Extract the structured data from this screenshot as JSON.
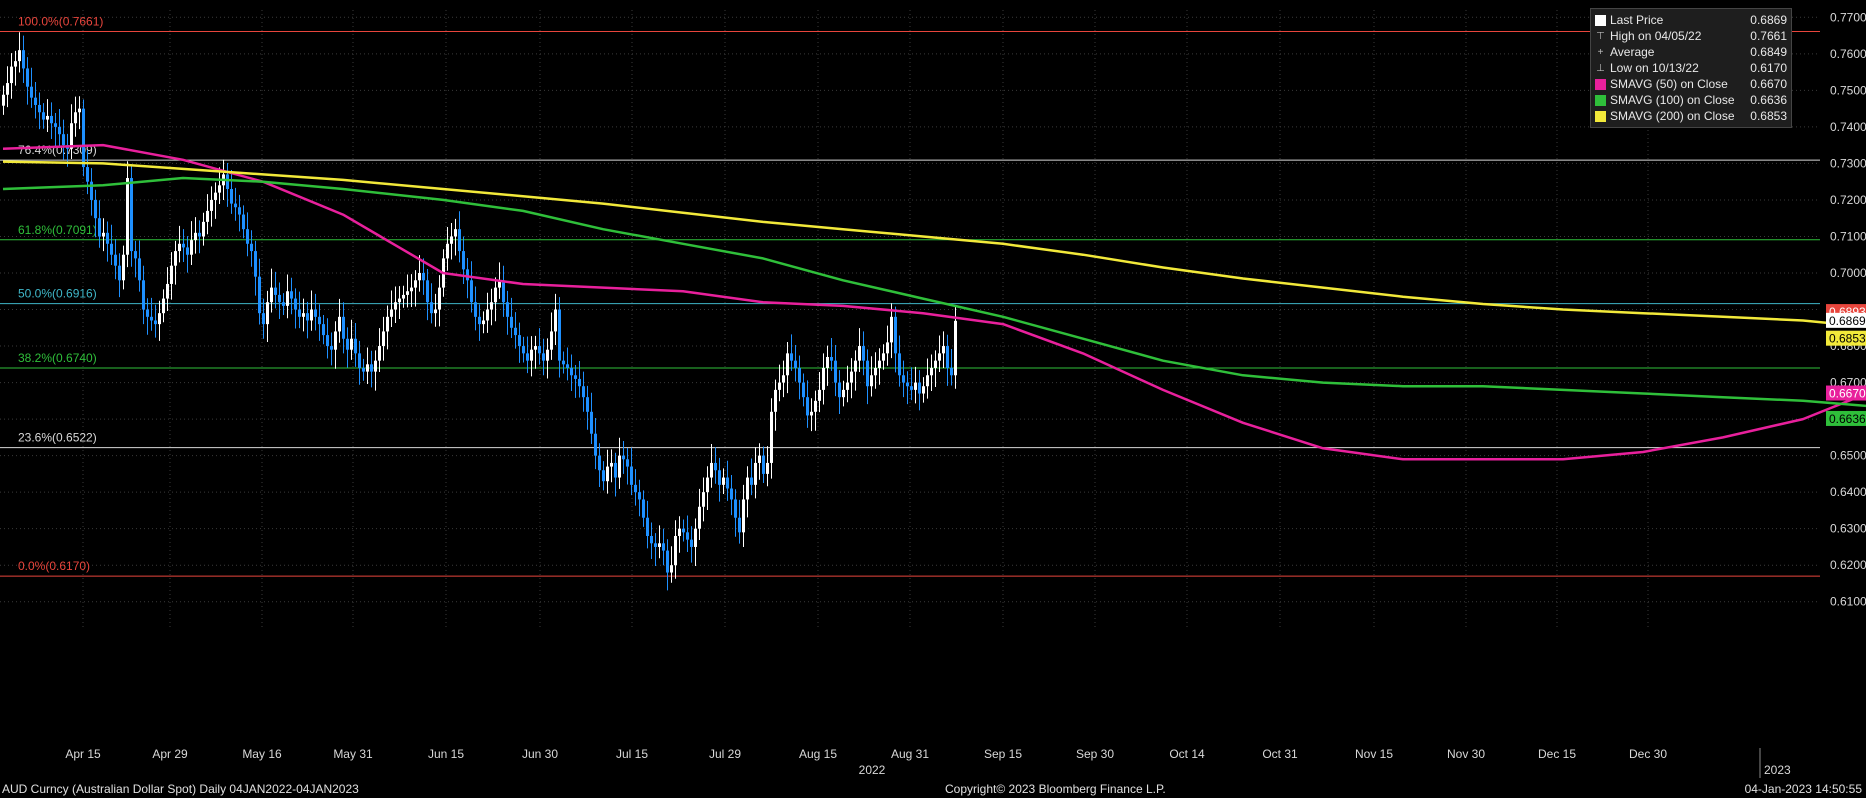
{
  "chart_data": {
    "type": "candlestick",
    "ylim": [
      0.605,
      0.772
    ],
    "y_ticks": [
      "0.6100",
      "0.6200",
      "0.6300",
      "0.6400",
      "0.6500",
      "0.6600",
      "0.6700",
      "0.6800",
      "0.6900",
      "0.7000",
      "0.7100",
      "0.7200",
      "0.7300",
      "0.7400",
      "0.7500",
      "0.7600",
      "0.7700"
    ],
    "x_ticks": [
      "Apr 15",
      "Apr 29",
      "May 16",
      "May 31",
      "Jun 15",
      "Jun 30",
      "Jul 15",
      "Jul 29",
      "Aug 15",
      "Aug 31",
      "Sep 15",
      "Sep 30",
      "Oct 14",
      "Oct 31",
      "Nov 15",
      "Nov 30",
      "Dec 15",
      "Dec 30"
    ],
    "year_labels": [
      "2022",
      "2023"
    ],
    "fib_levels": [
      {
        "label": "100.0%(0.7661)",
        "value": 0.7661,
        "color": "#e8453c"
      },
      {
        "label": "76.4%(0.7309)",
        "value": 0.7309,
        "color": "#d8d8d8"
      },
      {
        "label": "61.8%(0.7091)",
        "value": 0.7091,
        "color": "#2fbf3a"
      },
      {
        "label": "50.0%(0.6916)",
        "value": 0.6916,
        "color": "#3fb6c8"
      },
      {
        "label": "38.2%(0.6740)",
        "value": 0.674,
        "color": "#2fbf3a"
      },
      {
        "label": "23.6%(0.6522)",
        "value": 0.6522,
        "color": "#d8d8d8"
      },
      {
        "label": "0.0%(0.6170)",
        "value": 0.617,
        "color": "#e8453c"
      }
    ],
    "closes": [
      0.7488,
      0.752,
      0.7565,
      0.758,
      0.761,
      0.756,
      0.751,
      0.748,
      0.746,
      0.744,
      0.742,
      0.743,
      0.741,
      0.74,
      0.738,
      0.735,
      0.734,
      0.741,
      0.744,
      0.745,
      0.729,
      0.725,
      0.72,
      0.715,
      0.71,
      0.711,
      0.708,
      0.705,
      0.702,
      0.698,
      0.705,
      0.726,
      0.706,
      0.704,
      0.698,
      0.69,
      0.688,
      0.687,
      0.686,
      0.689,
      0.693,
      0.697,
      0.702,
      0.706,
      0.708,
      0.707,
      0.705,
      0.709,
      0.711,
      0.71,
      0.714,
      0.717,
      0.72,
      0.722,
      0.724,
      0.727,
      0.723,
      0.719,
      0.718,
      0.716,
      0.712,
      0.708,
      0.706,
      0.699,
      0.689,
      0.686,
      0.692,
      0.696,
      0.694,
      0.692,
      0.691,
      0.695,
      0.693,
      0.69,
      0.688,
      0.689,
      0.687,
      0.69,
      0.688,
      0.686,
      0.683,
      0.68,
      0.679,
      0.684,
      0.688,
      0.682,
      0.679,
      0.682,
      0.678,
      0.674,
      0.673,
      0.675,
      0.673,
      0.676,
      0.68,
      0.684,
      0.688,
      0.69,
      0.692,
      0.693,
      0.694,
      0.695,
      0.696,
      0.698,
      0.7,
      0.698,
      0.692,
      0.689,
      0.69,
      0.696,
      0.704,
      0.708,
      0.71,
      0.712,
      0.706,
      0.701,
      0.698,
      0.692,
      0.688,
      0.686,
      0.687,
      0.69,
      0.692,
      0.696,
      0.698,
      0.692,
      0.688,
      0.685,
      0.683,
      0.68,
      0.678,
      0.676,
      0.679,
      0.68,
      0.678,
      0.676,
      0.679,
      0.684,
      0.69,
      0.676,
      0.675,
      0.674,
      0.672,
      0.671,
      0.669,
      0.666,
      0.662,
      0.656,
      0.65,
      0.646,
      0.643,
      0.647,
      0.648,
      0.644,
      0.65,
      0.649,
      0.647,
      0.642,
      0.64,
      0.638,
      0.633,
      0.628,
      0.626,
      0.625,
      0.626,
      0.624,
      0.618,
      0.62,
      0.628,
      0.63,
      0.629,
      0.627,
      0.625,
      0.63,
      0.636,
      0.64,
      0.644,
      0.648,
      0.646,
      0.642,
      0.644,
      0.641,
      0.638,
      0.633,
      0.629,
      0.638,
      0.644,
      0.642,
      0.648,
      0.65,
      0.645,
      0.648,
      0.662,
      0.668,
      0.67,
      0.672,
      0.678,
      0.676,
      0.674,
      0.67,
      0.666,
      0.661,
      0.662,
      0.665,
      0.668,
      0.674,
      0.677,
      0.676,
      0.67,
      0.666,
      0.668,
      0.67,
      0.673,
      0.676,
      0.68,
      0.676,
      0.669,
      0.672,
      0.674,
      0.676,
      0.678,
      0.681,
      0.688,
      0.678,
      0.672,
      0.67,
      0.669,
      0.668,
      0.67,
      0.667,
      0.669,
      0.672,
      0.674,
      0.676,
      0.678,
      0.68,
      0.674,
      0.672,
      0.6869
    ]
  },
  "sma_lines": [
    {
      "name": "SMAVG (50)",
      "color": "#e8209c",
      "points": [
        [
          0,
          0.734
        ],
        [
          25,
          0.735
        ],
        [
          45,
          0.731
        ],
        [
          65,
          0.725
        ],
        [
          85,
          0.716
        ],
        [
          110,
          0.7
        ],
        [
          130,
          0.697
        ],
        [
          150,
          0.696
        ],
        [
          170,
          0.695
        ],
        [
          190,
          0.692
        ],
        [
          210,
          0.691
        ],
        [
          230,
          0.689
        ],
        [
          250,
          0.686
        ],
        [
          270,
          0.678
        ],
        [
          290,
          0.668
        ],
        [
          310,
          0.659
        ],
        [
          330,
          0.652
        ],
        [
          350,
          0.649
        ],
        [
          370,
          0.649
        ],
        [
          390,
          0.649
        ],
        [
          410,
          0.651
        ],
        [
          430,
          0.655
        ],
        [
          450,
          0.66
        ],
        [
          466,
          0.667
        ]
      ]
    },
    {
      "name": "SMAVG (100)",
      "color": "#2fbf3a",
      "points": [
        [
          0,
          0.723
        ],
        [
          25,
          0.724
        ],
        [
          45,
          0.726
        ],
        [
          65,
          0.725
        ],
        [
          85,
          0.723
        ],
        [
          110,
          0.72
        ],
        [
          130,
          0.717
        ],
        [
          150,
          0.712
        ],
        [
          170,
          0.708
        ],
        [
          190,
          0.704
        ],
        [
          210,
          0.698
        ],
        [
          230,
          0.693
        ],
        [
          250,
          0.688
        ],
        [
          270,
          0.682
        ],
        [
          290,
          0.676
        ],
        [
          310,
          0.672
        ],
        [
          330,
          0.67
        ],
        [
          350,
          0.669
        ],
        [
          370,
          0.669
        ],
        [
          390,
          0.668
        ],
        [
          410,
          0.667
        ],
        [
          430,
          0.666
        ],
        [
          450,
          0.665
        ],
        [
          466,
          0.6636
        ]
      ]
    },
    {
      "name": "SMAVG (200)",
      "color": "#f2e93a",
      "points": [
        [
          0,
          0.7305
        ],
        [
          25,
          0.73
        ],
        [
          45,
          0.7285
        ],
        [
          65,
          0.727
        ],
        [
          85,
          0.7255
        ],
        [
          110,
          0.723
        ],
        [
          130,
          0.721
        ],
        [
          150,
          0.719
        ],
        [
          170,
          0.7165
        ],
        [
          190,
          0.714
        ],
        [
          210,
          0.712
        ],
        [
          230,
          0.71
        ],
        [
          250,
          0.708
        ],
        [
          270,
          0.705
        ],
        [
          290,
          0.7015
        ],
        [
          310,
          0.6985
        ],
        [
          330,
          0.696
        ],
        [
          350,
          0.6935
        ],
        [
          370,
          0.6915
        ],
        [
          390,
          0.69
        ],
        [
          410,
          0.689
        ],
        [
          430,
          0.688
        ],
        [
          450,
          0.687
        ],
        [
          466,
          0.6853
        ]
      ]
    }
  ],
  "right_badges": [
    {
      "label": "0.6893",
      "value": 0.6893,
      "bg": "#e8453c",
      "fg": "#ffffff"
    },
    {
      "label": "0.6869",
      "value": 0.6869,
      "bg": "#ffffff",
      "fg": "#000000"
    },
    {
      "label": "0.6853",
      "value": 0.6853,
      "bg": "#f2e93a",
      "fg": "#000000"
    },
    {
      "label": "0.6670",
      "value": 0.667,
      "bg": "#e8209c",
      "fg": "#ffffff"
    },
    {
      "label": "0.6636",
      "value": 0.6636,
      "bg": "#2fbf3a",
      "fg": "#000000"
    }
  ],
  "legend": {
    "rows": [
      {
        "icon": "white-square",
        "label": "Last Price",
        "value": "0.6869",
        "color": "#ffffff"
      },
      {
        "icon": "high-marker",
        "label": "High on 04/05/22",
        "value": "0.7661",
        "color": ""
      },
      {
        "icon": "average-marker",
        "label": "Average",
        "value": "0.6849",
        "color": ""
      },
      {
        "icon": "low-marker",
        "label": "Low on 10/13/22",
        "value": "0.6170",
        "color": ""
      },
      {
        "icon": "magenta-square",
        "label": "SMAVG (50)  on Close",
        "value": "0.6670",
        "color": "#e8209c"
      },
      {
        "icon": "green-square",
        "label": "SMAVG (100)  on Close",
        "value": "0.6636",
        "color": "#2fbf3a"
      },
      {
        "icon": "yellow-square",
        "label": "SMAVG (200)  on Close",
        "value": "0.6853",
        "color": "#f2e93a"
      }
    ]
  },
  "footer": {
    "left": "AUD Curncy (Australian Dollar Spot)  Daily 04JAN2022-04JAN2023",
    "center": "Copyright© 2023 Bloomberg Finance L.P.",
    "right": "04-Jan-2023 14:50:55"
  },
  "colors": {
    "up": "#ffffff",
    "down": "#1e90ff",
    "grid": "#3a3a3a"
  }
}
